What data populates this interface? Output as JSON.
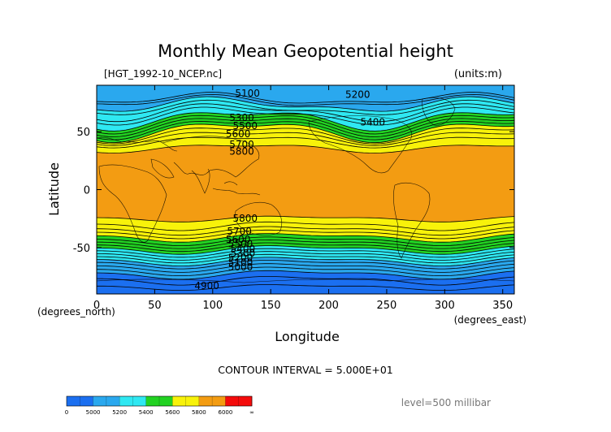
{
  "chart_data": {
    "type": "contour",
    "title": "Monthly Mean Geopotential height",
    "subtitle_left": "[HGT_1992-10_NCEP.nc]",
    "units": "(units:m)",
    "xlabel": "Longitude",
    "ylabel": "Latitude",
    "x_unit_label": "(degrees_east)",
    "y_unit_label": "(degrees_north)",
    "xlim": [
      0,
      360
    ],
    "ylim": [
      -90,
      90
    ],
    "x_ticks": [
      0,
      50,
      100,
      150,
      200,
      250,
      300,
      350
    ],
    "y_ticks": [
      -50,
      0,
      50
    ],
    "contour_interval_text": "CONTOUR INTERVAL = 5.000E+01",
    "level_text": "level=500 millibar",
    "levels_filled": [
      {
        "lower": null,
        "upper": 5000,
        "color": "#1b6ff0"
      },
      {
        "lower": 5000,
        "upper": 5200,
        "color": "#2aa8ee"
      },
      {
        "lower": 5200,
        "upper": 5400,
        "color": "#2fe8f2"
      },
      {
        "lower": 5400,
        "upper": 5600,
        "color": "#22d222"
      },
      {
        "lower": 5600,
        "upper": 5800,
        "color": "#f8f20a"
      },
      {
        "lower": 5800,
        "upper": 6000,
        "color": "#f39c12"
      },
      {
        "lower": 6000,
        "upper": null,
        "color": "#f40b0b"
      }
    ],
    "north_contours": [
      {
        "level": 5100,
        "lat": 78,
        "amp": 4,
        "phase": 40,
        "labeled": true
      },
      {
        "level": 5150,
        "lat": 76,
        "amp": 4,
        "phase": 40,
        "labeled": false
      },
      {
        "level": 5200,
        "lat": 73,
        "amp": 5,
        "phase": 50,
        "labeled": true
      },
      {
        "level": 5250,
        "lat": 70,
        "amp": 5,
        "phase": 50,
        "labeled": false
      },
      {
        "level": 5300,
        "lat": 67,
        "amp": 6,
        "phase": 60,
        "labeled": true
      },
      {
        "level": 5350,
        "lat": 64,
        "amp": 6,
        "phase": 60,
        "labeled": false
      },
      {
        "level": 5400,
        "lat": 61,
        "amp": 7,
        "phase": 70,
        "labeled": true
      },
      {
        "level": 5450,
        "lat": 58.5,
        "amp": 7,
        "phase": 70,
        "labeled": false
      },
      {
        "level": 5500,
        "lat": 56,
        "amp": 7,
        "phase": 70,
        "labeled": true
      },
      {
        "level": 5550,
        "lat": 53.5,
        "amp": 7,
        "phase": 70,
        "labeled": false
      },
      {
        "level": 5600,
        "lat": 51,
        "amp": 7,
        "phase": 70,
        "labeled": true
      },
      {
        "level": 5650,
        "lat": 48.5,
        "amp": 6,
        "phase": 70,
        "labeled": false
      },
      {
        "level": 5700,
        "lat": 45.5,
        "amp": 5,
        "phase": 70,
        "labeled": true
      },
      {
        "level": 5750,
        "lat": 42,
        "amp": 4,
        "phase": 70,
        "labeled": false
      },
      {
        "level": 5800,
        "lat": 36,
        "amp": 3,
        "phase": 70,
        "labeled": true
      }
    ],
    "south_contours": [
      {
        "level": 5800,
        "lat": -25,
        "amp": 2,
        "phase": 120,
        "labeled": true
      },
      {
        "level": 5750,
        "lat": -31,
        "amp": 3,
        "phase": 120,
        "labeled": false
      },
      {
        "level": 5700,
        "lat": -35,
        "amp": 3,
        "phase": 120,
        "labeled": true
      },
      {
        "level": 5650,
        "lat": -38,
        "amp": 3,
        "phase": 120,
        "labeled": false
      },
      {
        "level": 5600,
        "lat": -41,
        "amp": 3,
        "phase": 120,
        "labeled": true
      },
      {
        "level": 5550,
        "lat": -44,
        "amp": 3,
        "phase": 120,
        "labeled": false
      },
      {
        "level": 5500,
        "lat": -46.5,
        "amp": 3,
        "phase": 120,
        "labeled": true
      },
      {
        "level": 5450,
        "lat": -49,
        "amp": 3,
        "phase": 120,
        "labeled": false
      },
      {
        "level": 5400,
        "lat": -51.5,
        "amp": 3,
        "phase": 120,
        "labeled": true
      },
      {
        "level": 5350,
        "lat": -54,
        "amp": 3,
        "phase": 120,
        "labeled": false
      },
      {
        "level": 5300,
        "lat": -56.5,
        "amp": 3,
        "phase": 120,
        "labeled": true
      },
      {
        "level": 5250,
        "lat": -59,
        "amp": 3,
        "phase": 120,
        "labeled": false
      },
      {
        "level": 5200,
        "lat": -61.5,
        "amp": 3,
        "phase": 120,
        "labeled": true
      },
      {
        "level": 5150,
        "lat": -64,
        "amp": 3,
        "phase": 120,
        "labeled": false
      },
      {
        "level": 5100,
        "lat": -67,
        "amp": 3,
        "phase": 120,
        "labeled": true
      },
      {
        "level": 5050,
        "lat": -70,
        "amp": 3,
        "phase": 120,
        "labeled": false
      },
      {
        "level": 5000,
        "lat": -73,
        "amp": 3,
        "phase": 120,
        "labeled": true
      },
      {
        "level": 4950,
        "lat": -78,
        "amp": 3,
        "phase": 120,
        "labeled": false
      },
      {
        "level": 4900,
        "lat": -84,
        "amp": 2,
        "phase": 120,
        "labeled": true
      }
    ],
    "contour_labels": [
      {
        "text": "5100",
        "lon": 130,
        "lat": 83
      },
      {
        "text": "5200",
        "lon": 225,
        "lat": 82
      },
      {
        "text": "5300",
        "lon": 125,
        "lat": 62
      },
      {
        "text": "5400",
        "lon": 238,
        "lat": 58
      },
      {
        "text": "5500",
        "lon": 128,
        "lat": 55
      },
      {
        "text": "5600",
        "lon": 122,
        "lat": 48
      },
      {
        "text": "5700",
        "lon": 125,
        "lat": 39
      },
      {
        "text": "5800",
        "lon": 125,
        "lat": 33
      },
      {
        "text": "5800",
        "lon": 128,
        "lat": -25
      },
      {
        "text": "5700",
        "lon": 123,
        "lat": -36
      },
      {
        "text": "5600",
        "lon": 122,
        "lat": -43
      },
      {
        "text": "5500",
        "lon": 124,
        "lat": -47
      },
      {
        "text": "5400",
        "lon": 126,
        "lat": -51
      },
      {
        "text": "5300",
        "lon": 126,
        "lat": -55
      },
      {
        "text": "5200",
        "lon": 124,
        "lat": -59
      },
      {
        "text": "5100",
        "lon": 124,
        "lat": -63
      },
      {
        "text": "5000",
        "lon": 124,
        "lat": -67
      },
      {
        "text": "4900",
        "lon": 95,
        "lat": -83
      }
    ],
    "colorbar": {
      "labels": [
        "0",
        "5000",
        "5200",
        "5400",
        "5600",
        "5800",
        "6000",
        "∞"
      ],
      "colors": [
        "#1b6ff0",
        "#1b6ff0",
        "#2aa8ee",
        "#2aa8ee",
        "#2fe8f2",
        "#2fe8f2",
        "#22d222",
        "#22d222",
        "#f8f20a",
        "#f8f20a",
        "#f39c12",
        "#f39c12",
        "#f40b0b",
        "#f40b0b"
      ]
    }
  }
}
